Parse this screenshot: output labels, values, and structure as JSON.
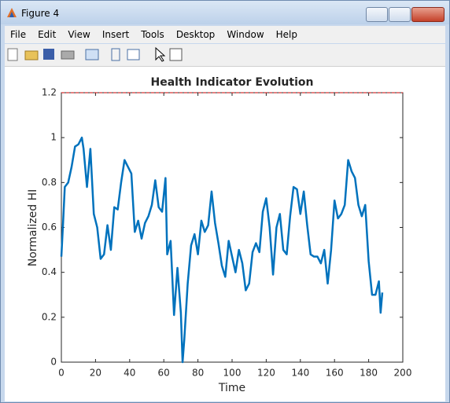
{
  "window": {
    "title": "Figure 4",
    "menu": [
      "File",
      "Edit",
      "View",
      "Insert",
      "Tools",
      "Desktop",
      "Window",
      "Help"
    ]
  },
  "chart_data": {
    "type": "line",
    "title": "Health Indicator Evolution",
    "x_label": "Time",
    "y_label": "Normalized HI",
    "x": [
      0,
      1,
      2,
      4,
      6,
      8,
      10,
      12,
      13,
      15,
      17,
      19,
      21,
      23,
      25,
      27,
      29,
      31,
      33,
      35,
      37,
      39,
      41,
      43,
      45,
      47,
      49,
      51,
      53,
      55,
      57,
      59,
      61,
      62,
      64,
      66,
      68,
      70,
      71,
      72,
      74,
      76,
      78,
      80,
      82,
      84,
      86,
      88,
      90,
      92,
      94,
      96,
      98,
      100,
      102,
      104,
      106,
      108,
      110,
      112,
      114,
      116,
      118,
      120,
      122,
      124,
      126,
      128,
      130,
      132,
      134,
      136,
      138,
      140,
      142,
      144,
      146,
      148,
      150,
      152,
      154,
      156,
      158,
      160,
      162,
      164,
      166,
      168,
      170,
      172,
      174,
      176,
      178,
      180,
      182,
      184,
      186,
      187,
      188
    ],
    "values": [
      0.47,
      0.62,
      0.78,
      0.8,
      0.87,
      0.96,
      0.97,
      1.0,
      0.95,
      0.78,
      0.95,
      0.66,
      0.6,
      0.46,
      0.48,
      0.61,
      0.5,
      0.69,
      0.68,
      0.8,
      0.9,
      0.87,
      0.84,
      0.58,
      0.63,
      0.55,
      0.62,
      0.65,
      0.7,
      0.81,
      0.69,
      0.67,
      0.82,
      0.48,
      0.54,
      0.21,
      0.42,
      0.22,
      0.0,
      0.1,
      0.35,
      0.52,
      0.57,
      0.48,
      0.63,
      0.58,
      0.61,
      0.76,
      0.62,
      0.53,
      0.43,
      0.38,
      0.54,
      0.47,
      0.4,
      0.5,
      0.44,
      0.32,
      0.35,
      0.49,
      0.53,
      0.49,
      0.67,
      0.73,
      0.6,
      0.39,
      0.6,
      0.66,
      0.5,
      0.48,
      0.65,
      0.78,
      0.77,
      0.66,
      0.76,
      0.61,
      0.48,
      0.47,
      0.47,
      0.44,
      0.5,
      0.35,
      0.5,
      0.72,
      0.64,
      0.66,
      0.7,
      0.9,
      0.85,
      0.82,
      0.7,
      0.65,
      0.7,
      0.45,
      0.3,
      0.3,
      0.36,
      0.22,
      0.31
    ],
    "color": "#0072bd",
    "reference_line": {
      "value": 1.2,
      "color": "#cc0000"
    },
    "xlim": [
      0,
      200
    ],
    "xticks": [
      0,
      20,
      40,
      60,
      80,
      100,
      120,
      140,
      160,
      180,
      200
    ],
    "ylim": [
      0,
      1.2
    ],
    "yticks": [
      0,
      0.2,
      0.4,
      0.6,
      0.8,
      1,
      1.2
    ]
  }
}
